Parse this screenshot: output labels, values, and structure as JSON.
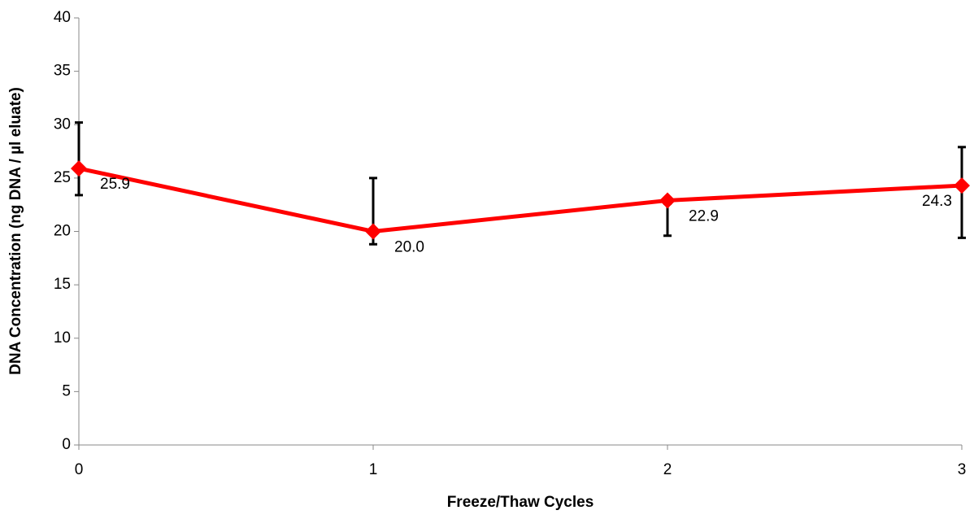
{
  "chart_data": {
    "type": "line",
    "x_label": "Freeze/Thaw Cycles",
    "y_label": "DNA Concentration (ng DNA / µl eluate)",
    "x": [
      0,
      1,
      2,
      3
    ],
    "series": [
      {
        "color": "#ff0000",
        "values": [
          25.9,
          20.0,
          22.9,
          24.3
        ],
        "value_labels": [
          "25.9",
          "20.0",
          "22.9",
          "24.3"
        ],
        "error_low": [
          23.4,
          18.8,
          19.6,
          19.4
        ],
        "error_high": [
          30.2,
          25.0,
          22.6,
          27.9
        ]
      }
    ],
    "xlim": [
      0,
      3
    ],
    "xticks": [
      0,
      1,
      2,
      3
    ],
    "ylim": [
      0,
      40
    ],
    "yticks": [
      0,
      5,
      10,
      15,
      20,
      25,
      30,
      35,
      40
    ]
  }
}
